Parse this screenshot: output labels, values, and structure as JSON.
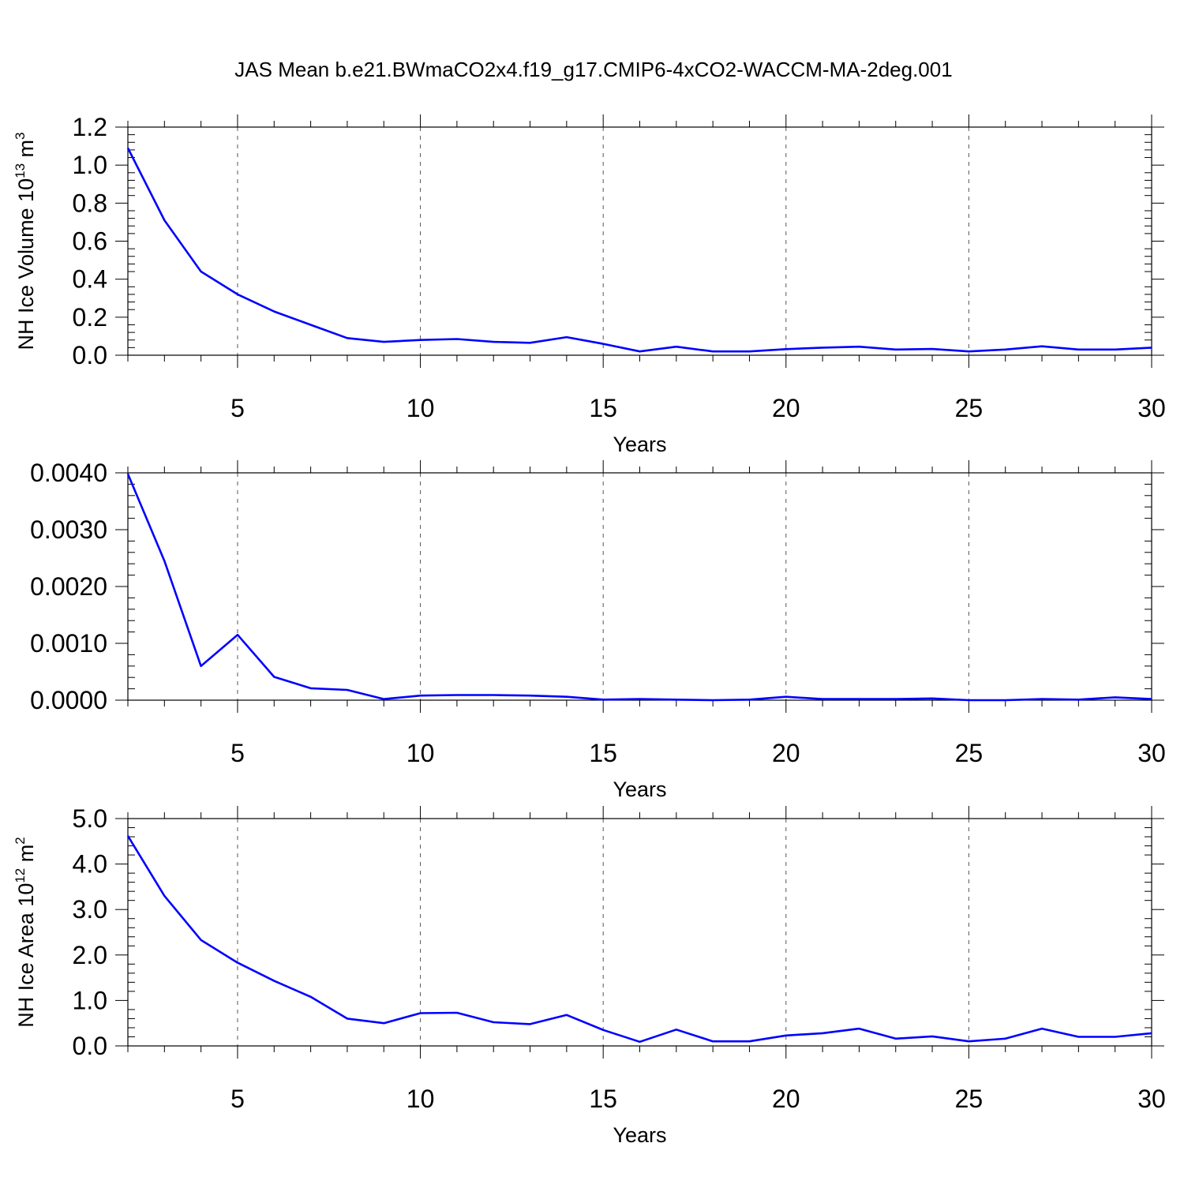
{
  "title": "JAS Mean b.e21.BWmaCO2x4.f19_g17.CMIP6-4xCO2-WACCM-MA-2deg.001",
  "line_color": "#0000ff",
  "chart_data": [
    {
      "type": "line",
      "ylabel": {
        "text": "NH Ice Volume 10",
        "sup": "13",
        "unit": " m",
        "unit_sup": "3"
      },
      "xlabel": "Years",
      "xlim": [
        2,
        30
      ],
      "ylim": [
        0,
        1.2
      ],
      "x_ticks": [
        "5",
        "10",
        "15",
        "20",
        "25",
        "30"
      ],
      "y_ticks": [
        "0.0",
        "0.2",
        "0.4",
        "0.6",
        "0.8",
        "1.0",
        "1.2"
      ],
      "grid": "vertical dashed at major x ticks",
      "x": [
        2,
        3,
        4,
        5,
        6,
        7,
        8,
        9,
        10,
        11,
        12,
        13,
        14,
        15,
        16,
        17,
        18,
        19,
        20,
        21,
        22,
        23,
        24,
        25,
        26,
        27,
        28,
        29,
        30
      ],
      "values": [
        1.09,
        0.71,
        0.44,
        0.32,
        0.23,
        0.16,
        0.09,
        0.07,
        0.08,
        0.085,
        0.07,
        0.065,
        0.095,
        0.06,
        0.02,
        0.045,
        0.02,
        0.02,
        0.032,
        0.04,
        0.045,
        0.03,
        0.033,
        0.02,
        0.03,
        0.047,
        0.03,
        0.03,
        0.04
      ]
    },
    {
      "type": "line",
      "ylabel": null,
      "xlabel": "Years",
      "xlim": [
        2,
        30
      ],
      "ylim": [
        0,
        0.004
      ],
      "x_ticks": [
        "5",
        "10",
        "15",
        "20",
        "25",
        "30"
      ],
      "y_ticks": [
        "0.0000",
        "0.0010",
        "0.0020",
        "0.0030",
        "0.0040"
      ],
      "grid": "vertical dashed at major x ticks",
      "x": [
        2,
        3,
        4,
        5,
        6,
        7,
        8,
        9,
        10,
        11,
        12,
        13,
        14,
        15,
        16,
        17,
        18,
        19,
        20,
        21,
        22,
        23,
        24,
        25,
        26,
        27,
        28,
        29,
        30
      ],
      "values": [
        0.00398,
        0.00245,
        0.0006,
        0.00115,
        0.00041,
        0.00021,
        0.00018,
        2e-05,
        8e-05,
        9e-05,
        9e-05,
        8e-05,
        6e-05,
        1e-05,
        2e-05,
        1e-05,
        0.0,
        1e-05,
        6e-05,
        2e-05,
        2e-05,
        2e-05,
        3e-05,
        0.0,
        0.0,
        2e-05,
        1e-05,
        5e-05,
        2e-05
      ]
    },
    {
      "type": "line",
      "ylabel": {
        "text": "NH Ice Area 10",
        "sup": "12",
        "unit": " m",
        "unit_sup": "2"
      },
      "xlabel": "Years",
      "xlim": [
        2,
        30
      ],
      "ylim": [
        0,
        5.0
      ],
      "x_ticks": [
        "5",
        "10",
        "15",
        "20",
        "25",
        "30"
      ],
      "y_ticks": [
        "0.0",
        "1.0",
        "2.0",
        "3.0",
        "4.0",
        "5.0"
      ],
      "grid": "vertical dashed at major x ticks",
      "x": [
        2,
        3,
        4,
        5,
        6,
        7,
        8,
        9,
        10,
        11,
        12,
        13,
        14,
        15,
        16,
        17,
        18,
        19,
        20,
        21,
        22,
        23,
        24,
        25,
        26,
        27,
        28,
        29,
        30
      ],
      "values": [
        4.62,
        3.3,
        2.33,
        1.83,
        1.43,
        1.08,
        0.6,
        0.5,
        0.72,
        0.73,
        0.52,
        0.48,
        0.68,
        0.35,
        0.09,
        0.36,
        0.1,
        0.1,
        0.23,
        0.28,
        0.38,
        0.16,
        0.21,
        0.1,
        0.16,
        0.38,
        0.2,
        0.2,
        0.28
      ]
    }
  ]
}
